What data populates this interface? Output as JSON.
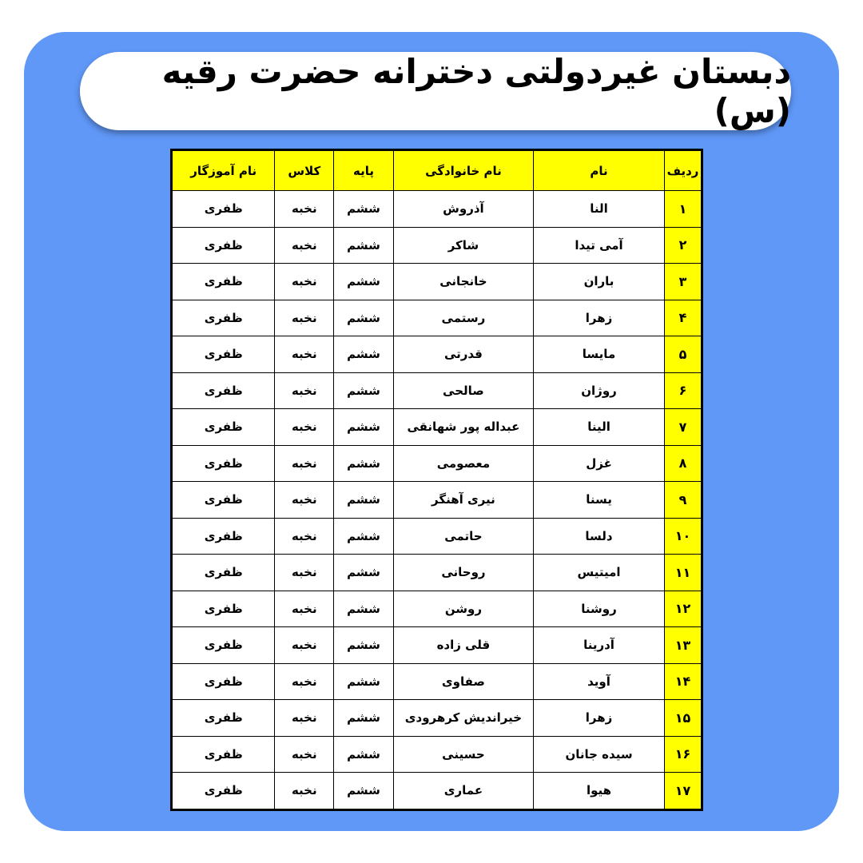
{
  "title": "دبستان غیردولتی دخترانه حضرت رقیه (س)",
  "colors": {
    "background": "#6098f8",
    "header": "#ffff00",
    "index_column": "#ffff00"
  },
  "table": {
    "headers": [
      "ردیف",
      "نام",
      "نام خانوادگی",
      "پایه",
      "کلاس",
      "نام آموزگار"
    ],
    "rows": [
      [
        "۱",
        "النا",
        "آذروش",
        "ششم",
        "نخبه",
        "ظفری"
      ],
      [
        "۲",
        "آمی تیدا",
        "شاکر",
        "ششم",
        "نخبه",
        "ظفری"
      ],
      [
        "۳",
        "باران",
        "خانجانی",
        "ششم",
        "نخبه",
        "ظفری"
      ],
      [
        "۴",
        "زهرا",
        "رستمی",
        "ششم",
        "نخبه",
        "ظفری"
      ],
      [
        "۵",
        "مایسا",
        "قدرتی",
        "ششم",
        "نخبه",
        "ظفری"
      ],
      [
        "۶",
        "روژان",
        "صالحی",
        "ششم",
        "نخبه",
        "ظفری"
      ],
      [
        "۷",
        "الینا",
        "عبداله پور شهانقی",
        "ششم",
        "نخبه",
        "ظفری"
      ],
      [
        "۸",
        "غزل",
        "معصومی",
        "ششم",
        "نخبه",
        "ظفری"
      ],
      [
        "۹",
        "یسنا",
        "نیری آهنگر",
        "ششم",
        "نخبه",
        "ظفری"
      ],
      [
        "۱۰",
        "دلسا",
        "حاتمی",
        "ششم",
        "نخبه",
        "ظفری"
      ],
      [
        "۱۱",
        "امیتیس",
        "روحانی",
        "ششم",
        "نخبه",
        "ظفری"
      ],
      [
        "۱۲",
        "روشنا",
        "روشن",
        "ششم",
        "نخبه",
        "ظفری"
      ],
      [
        "۱۳",
        "آدرینا",
        "قلی زاده",
        "ششم",
        "نخبه",
        "ظفری"
      ],
      [
        "۱۴",
        "آوید",
        "صفاوی",
        "ششم",
        "نخبه",
        "ظفری"
      ],
      [
        "۱۵",
        "زهرا",
        "خیراندیش کرهرودی",
        "ششم",
        "نخبه",
        "ظفری"
      ],
      [
        "۱۶",
        "سیده جانان",
        "حسینی",
        "ششم",
        "نخبه",
        "ظفری"
      ],
      [
        "۱۷",
        "هیوا",
        "عماری",
        "ششم",
        "نخبه",
        "ظفری"
      ]
    ]
  }
}
